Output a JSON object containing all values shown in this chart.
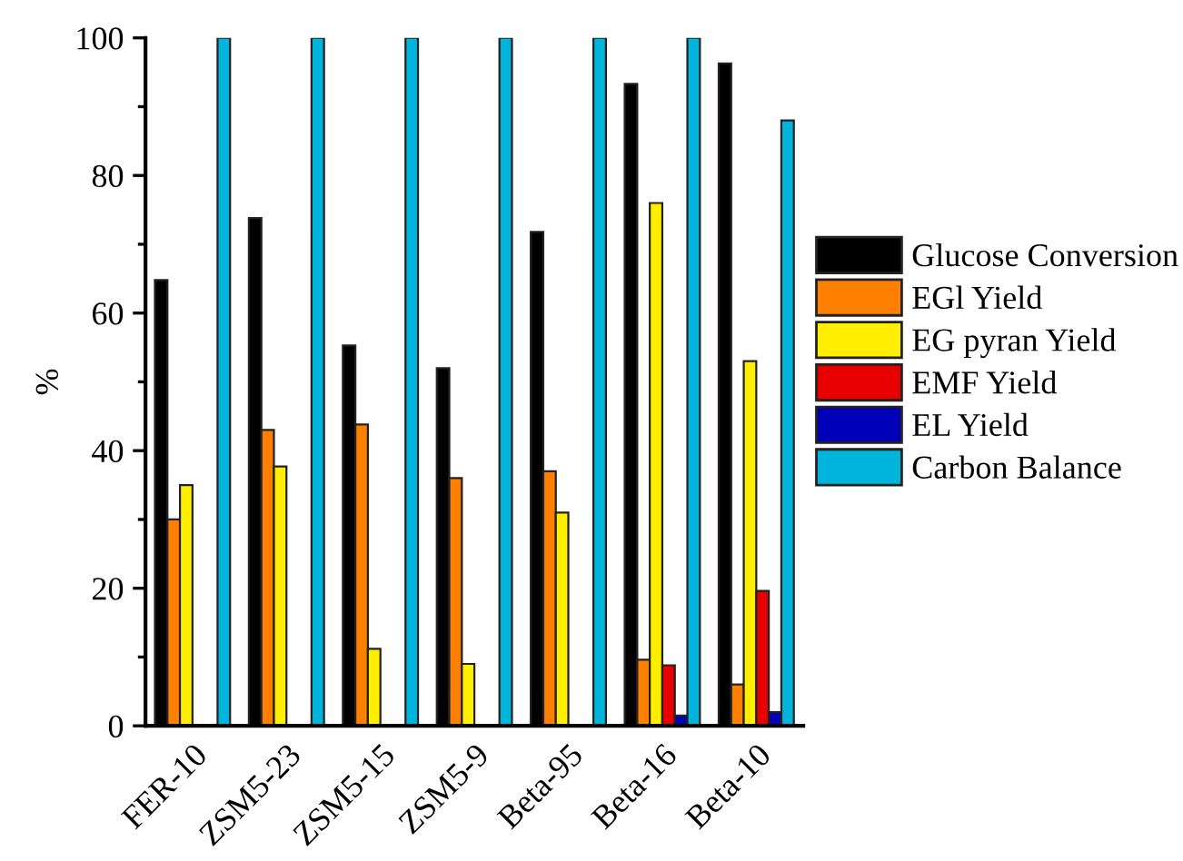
{
  "chart_data": {
    "type": "bar",
    "ylabel": "%",
    "categories": [
      "FER-10",
      "ZSM5-23",
      "ZSM5-15",
      "ZSM5-9",
      "Beta-95",
      "Beta-16",
      "Beta-10"
    ],
    "series": [
      {
        "name": "Glucose Conversion",
        "color": "#000000",
        "values": [
          64.8,
          73.8,
          55.3,
          52,
          71.8,
          93.3,
          96.3
        ]
      },
      {
        "name": "EGl Yield",
        "color": "#ff7f00",
        "values": [
          30,
          43,
          43.8,
          36,
          37,
          9.6,
          6
        ]
      },
      {
        "name": "EG pyran Yield",
        "color": "#ffee00",
        "values": [
          35,
          37.7,
          11.2,
          9,
          31,
          76,
          53
        ]
      },
      {
        "name": "EMF Yield",
        "color": "#e80000",
        "values": [
          null,
          null,
          null,
          null,
          null,
          8.8,
          19.6
        ]
      },
      {
        "name": "EL Yield",
        "color": "#0000b8",
        "values": [
          null,
          null,
          null,
          null,
          null,
          1.5,
          2
        ]
      },
      {
        "name": "Carbon Balance",
        "color": "#00b4dc",
        "values": [
          100,
          100,
          100,
          100,
          100,
          100,
          88
        ]
      }
    ],
    "ylim": [
      0,
      100
    ],
    "yticks": [
      0,
      20,
      40,
      60,
      80,
      100
    ],
    "grid": false,
    "legend": "right"
  }
}
